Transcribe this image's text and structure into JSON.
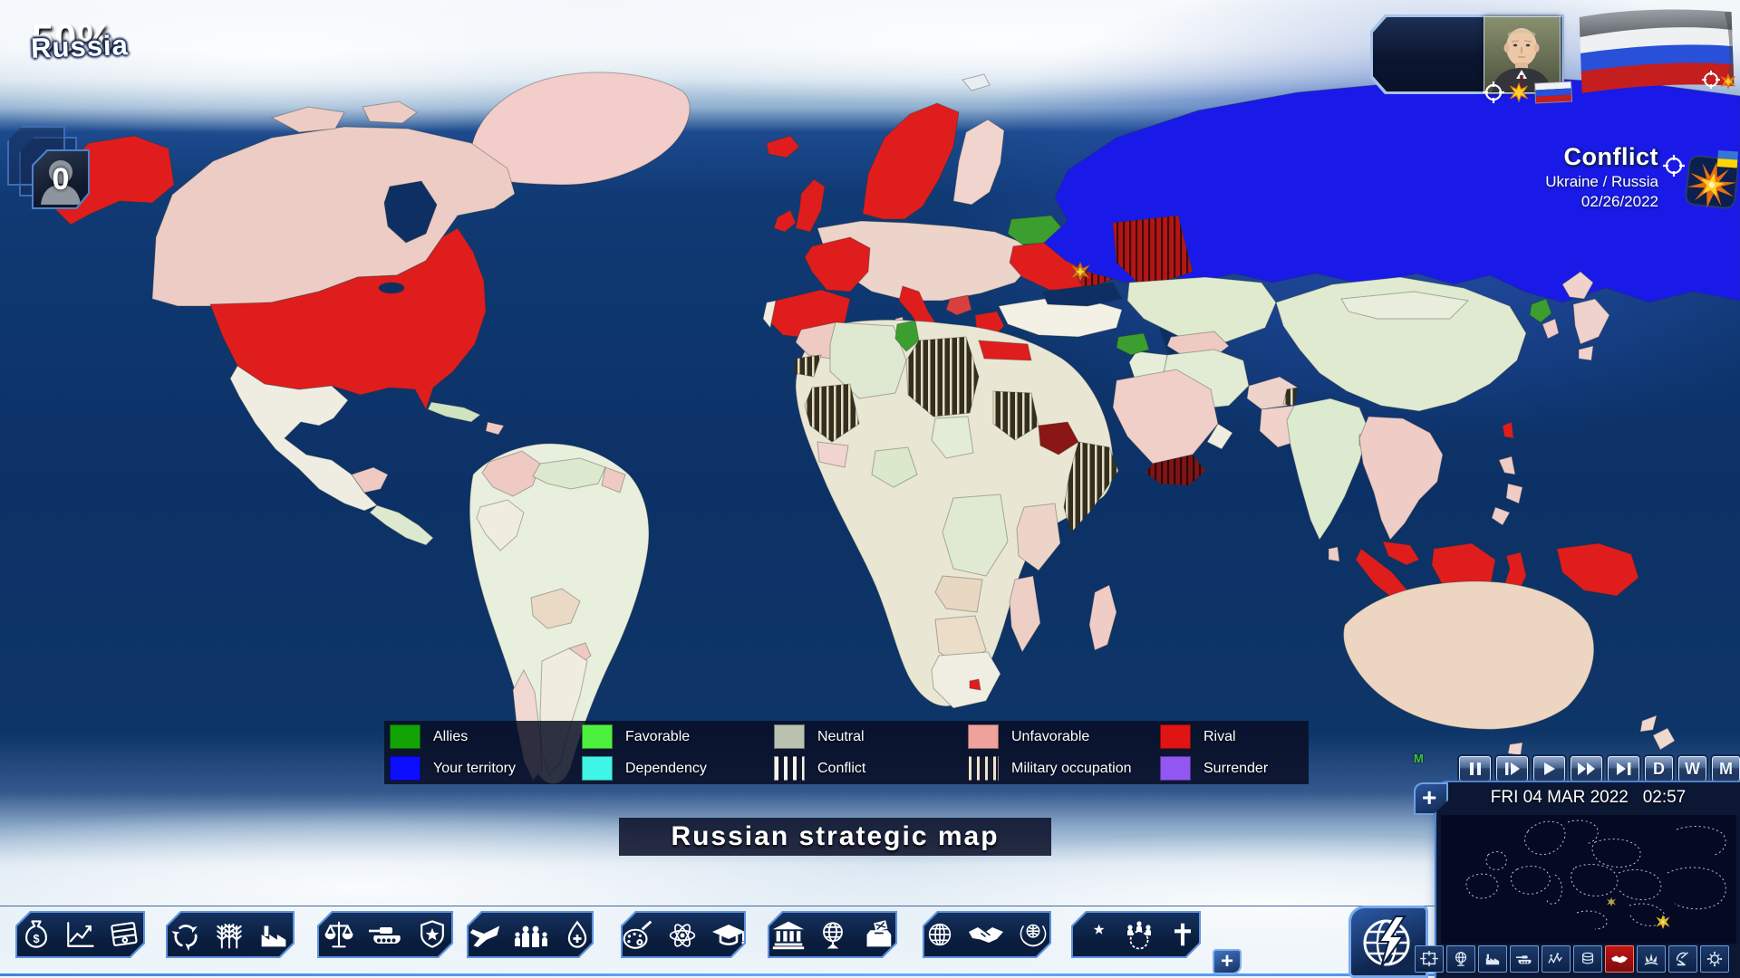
{
  "hud": {
    "citizen_counter": "0",
    "approval_percent": "50%",
    "country_name": "Russia",
    "conflict": {
      "title": "Conflict",
      "parties": "Ukraine / Russia",
      "date": "02/26/2022"
    }
  },
  "map": {
    "title_banner": "Russian strategic map"
  },
  "legend_items": [
    {
      "label": "Allies",
      "swatch": "solid",
      "color": "#12a405"
    },
    {
      "label": "Favorable",
      "swatch": "solid",
      "color": "#4ef03e"
    },
    {
      "label": "Neutral",
      "swatch": "solid",
      "color": "#b9c1b0"
    },
    {
      "label": "Unfavorable",
      "swatch": "solid",
      "color": "#efa29b"
    },
    {
      "label": "Rival",
      "swatch": "solid",
      "color": "#e11414"
    },
    {
      "label": "Your territory",
      "swatch": "solid",
      "color": "#0d0dff"
    },
    {
      "label": "Dependency",
      "swatch": "solid",
      "color": "#3ff5e6"
    },
    {
      "label": "Conflict",
      "swatch": "stripes_wide",
      "color": ""
    },
    {
      "label": "Military occupation",
      "swatch": "stripes_thin",
      "color": ""
    },
    {
      "label": "Surrender",
      "swatch": "solid",
      "color": "#9257f2"
    }
  ],
  "clock": {
    "date": "FRI 04 MAR 2022",
    "time": "02:57",
    "mode_marker": "M"
  },
  "playback": {
    "buttons": [
      "pause",
      "step-forward",
      "play",
      "fast-forward",
      "skip-to-end"
    ],
    "speed_buttons": [
      "D",
      "W",
      "M"
    ]
  },
  "toolbar": {
    "plus_label": "+",
    "groups": [
      {
        "name": "economy",
        "icons": [
          "money-bag",
          "line-chart",
          "banknotes"
        ]
      },
      {
        "name": "resources",
        "icons": [
          "recycle",
          "wheat",
          "factory"
        ]
      },
      {
        "name": "state-defense",
        "icons": [
          "scales",
          "tank",
          "shield-star"
        ]
      },
      {
        "name": "transport-society-health",
        "icons": [
          "airplane",
          "family",
          "droplet-cross"
        ]
      },
      {
        "name": "culture-science-education",
        "icons": [
          "palette",
          "atom",
          "graduation-cap"
        ]
      },
      {
        "name": "institutions-politics",
        "icons": [
          "bank",
          "globe-stand",
          "ballot-box"
        ]
      },
      {
        "name": "foreign-affairs",
        "icons": [
          "globe-network",
          "handshake",
          "un-emblem"
        ]
      },
      {
        "name": "religion-society",
        "icons": [
          "crescent-star",
          "people-globe",
          "cross"
        ]
      }
    ]
  },
  "minimap": {
    "plus_label": "+",
    "buttons": [
      "center-frame",
      "globe",
      "factory",
      "tank",
      "protest",
      "supplies",
      "handshake",
      "air-fleet",
      "radar",
      "virus"
    ],
    "active_button": "handshake"
  },
  "colors": {
    "panel_border": "#5d92e0",
    "panel_bg": "#0a1d3e",
    "ocean": "#0d2f63",
    "your_territory": "#1a1ae8",
    "rival": "#e01d1d",
    "conflict_icon_orange": "#e87010",
    "conflict_icon_yellow": "#ffd224"
  }
}
